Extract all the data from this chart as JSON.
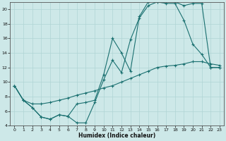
{
  "xlabel": "Humidex (Indice chaleur)",
  "bg_color": "#cde8e8",
  "line_color": "#1a7070",
  "grid_color": "#b0d4d4",
  "xlim": [
    -0.5,
    23.5
  ],
  "ylim": [
    4,
    21
  ],
  "xticks": [
    0,
    1,
    2,
    3,
    4,
    5,
    6,
    7,
    8,
    9,
    10,
    11,
    12,
    13,
    14,
    15,
    16,
    17,
    18,
    19,
    20,
    21,
    22,
    23
  ],
  "yticks": [
    4,
    6,
    8,
    10,
    12,
    14,
    16,
    18,
    20
  ],
  "line1_x": [
    0,
    1,
    2,
    3,
    4,
    5,
    6,
    7,
    8,
    9,
    10,
    11,
    12,
    13,
    14,
    15,
    16,
    17,
    18,
    19,
    20,
    21,
    22,
    23
  ],
  "line1_y": [
    9.5,
    7.5,
    6.5,
    5.2,
    4.9,
    5.5,
    5.3,
    4.4,
    4.4,
    7.2,
    10.3,
    13.0,
    11.3,
    15.8,
    18.8,
    20.5,
    21.0,
    20.8,
    20.8,
    18.5,
    15.2,
    13.8,
    12.0,
    12.0
  ],
  "line2_x": [
    0,
    1,
    2,
    3,
    4,
    5,
    6,
    7,
    8,
    9,
    10,
    11,
    12,
    13,
    14,
    15,
    16,
    17,
    18,
    19,
    20,
    21,
    22,
    23
  ],
  "line2_y": [
    9.5,
    7.5,
    7.0,
    7.0,
    7.2,
    7.5,
    7.8,
    8.2,
    8.5,
    8.8,
    9.2,
    9.5,
    10.0,
    10.5,
    11.0,
    11.5,
    12.0,
    12.2,
    12.3,
    12.5,
    12.8,
    12.8,
    12.5,
    12.3
  ],
  "line3_x": [
    0,
    1,
    2,
    3,
    4,
    5,
    6,
    7,
    8,
    9,
    10,
    11,
    12,
    13,
    14,
    15,
    16,
    17,
    18,
    19,
    20,
    21,
    22,
    23
  ],
  "line3_y": [
    9.5,
    7.5,
    6.5,
    5.2,
    4.9,
    5.5,
    5.3,
    7.0,
    7.2,
    7.5,
    11.0,
    16.0,
    14.0,
    11.5,
    19.0,
    21.0,
    21.2,
    21.2,
    21.0,
    20.5,
    20.8,
    20.8,
    12.0,
    12.0
  ]
}
